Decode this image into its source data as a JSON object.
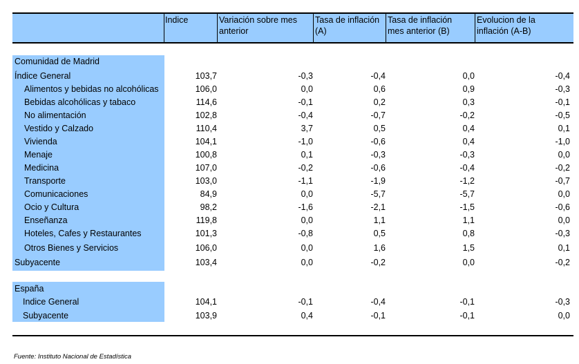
{
  "headers": {
    "indice": "Indice",
    "variacion": [
      "Variación sobre mes",
      "anterior"
    ],
    "tasa_a": [
      "Tasa de inflación",
      "(A)"
    ],
    "tasa_b": [
      "Tasa de inflación",
      "mes anterior (B)"
    ],
    "evolucion": [
      "Evolucion de la",
      "inflación (A-B)"
    ]
  },
  "sections": {
    "madrid": {
      "title": "Comunidad de Madrid",
      "rows": [
        {
          "label": "Índice General",
          "indice": "103,7",
          "variacion": "-0,3",
          "tasa_a": "-0,4",
          "tasa_b": "0,0",
          "evolucion": "-0,4"
        },
        {
          "label": "Alimentos y bebidas no alcohólicas",
          "indice": "106,0",
          "variacion": "0,0",
          "tasa_a": "0,6",
          "tasa_b": "0,9",
          "evolucion": "-0,3"
        },
        {
          "label": "Bebidas alcohólicas y tabaco",
          "indice": "114,6",
          "variacion": "-0,1",
          "tasa_a": "0,2",
          "tasa_b": "0,3",
          "evolucion": "-0,1"
        },
        {
          "label": "No alimentación",
          "indice": "102,8",
          "variacion": "-0,4",
          "tasa_a": "-0,7",
          "tasa_b": "-0,2",
          "evolucion": "-0,5"
        },
        {
          "label": "Vestido y Calzado",
          "indice": "110,4",
          "variacion": "3,7",
          "tasa_a": "0,5",
          "tasa_b": "0,4",
          "evolucion": "0,1"
        },
        {
          "label": "Vivienda",
          "indice": "104,1",
          "variacion": "-1,0",
          "tasa_a": "-0,6",
          "tasa_b": "0,4",
          "evolucion": "-1,0"
        },
        {
          "label": "Menaje",
          "indice": "100,8",
          "variacion": "0,1",
          "tasa_a": "-0,3",
          "tasa_b": "-0,3",
          "evolucion": "0,0"
        },
        {
          "label": "Medicina",
          "indice": "107,0",
          "variacion": "-0,2",
          "tasa_a": "-0,6",
          "tasa_b": "-0,4",
          "evolucion": "-0,2"
        },
        {
          "label": "Transporte",
          "indice": "103,0",
          "variacion": "-1,1",
          "tasa_a": "-1,9",
          "tasa_b": "-1,2",
          "evolucion": "-0,7"
        },
        {
          "label": "Comunicaciones",
          "indice": "84,9",
          "variacion": "0,0",
          "tasa_a": "-5,7",
          "tasa_b": "-5,7",
          "evolucion": "0,0"
        },
        {
          "label": "Ocio y Cultura",
          "indice": "98,2",
          "variacion": "-1,6",
          "tasa_a": "-2,1",
          "tasa_b": "-1,5",
          "evolucion": "-0,6"
        },
        {
          "label": "Enseñanza",
          "indice": "119,8",
          "variacion": "0,0",
          "tasa_a": "1,1",
          "tasa_b": "1,1",
          "evolucion": "0,0"
        },
        {
          "label": "Hoteles, Cafes y Restaurantes",
          "indice": "101,3",
          "variacion": "-0,8",
          "tasa_a": "0,5",
          "tasa_b": "0,8",
          "evolucion": "-0,3"
        },
        {
          "label": "Otros Bienes y Servicios",
          "indice": "106,0",
          "variacion": "0,0",
          "tasa_a": "1,6",
          "tasa_b": "1,5",
          "evolucion": "0,1"
        },
        {
          "label": "Subyacente",
          "indice": "103,4",
          "variacion": "0,0",
          "tasa_a": "-0,2",
          "tasa_b": "0,0",
          "evolucion": "-0,2"
        }
      ]
    },
    "espana": {
      "title": "España",
      "rows": [
        {
          "label": "Indice General",
          "indice": "104,1",
          "variacion": "-0,1",
          "tasa_a": "-0,4",
          "tasa_b": "-0,1",
          "evolucion": "-0,3"
        },
        {
          "label": "Subyacente",
          "indice": "103,9",
          "variacion": "0,4",
          "tasa_a": "-0,1",
          "tasa_b": "-0,1",
          "evolucion": "0,0"
        }
      ]
    }
  },
  "source": "Fuente: Instituto Nacional de Estadística"
}
